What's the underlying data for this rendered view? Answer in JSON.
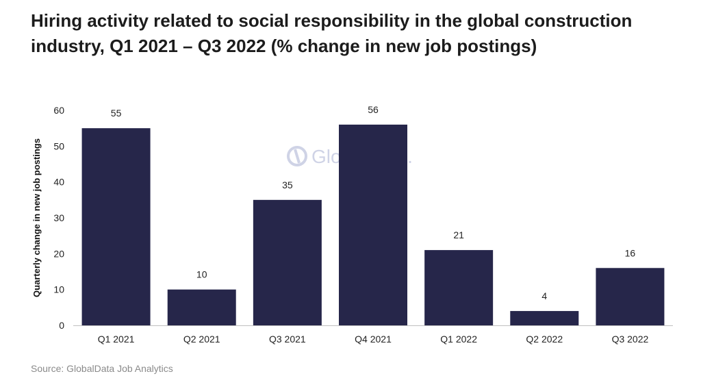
{
  "title": "Hiring activity related to social responsibility in the global construction industry, Q1 2021 – Q3 2022 (% change in new job postings)",
  "source": "Source: GlobalData Job Analytics",
  "watermark": "GlobalData.",
  "colors": {
    "bar": "#26264a",
    "axis": "#bfbfbf",
    "watermark": "#cfd3e6"
  },
  "chart_data": {
    "type": "bar",
    "categories": [
      "Q1 2021",
      "Q2 2021",
      "Q3 2021",
      "Q4 2021",
      "Q1 2022",
      "Q2 2022",
      "Q3 2022"
    ],
    "values": [
      55,
      10,
      35,
      56,
      21,
      4,
      16
    ],
    "ylabel": "Quarterly change in new job postings",
    "xlabel": "",
    "ylim": [
      0,
      60
    ],
    "yticks": [
      0,
      10,
      20,
      30,
      40,
      50,
      60
    ],
    "grid": false,
    "data_labels": true
  }
}
